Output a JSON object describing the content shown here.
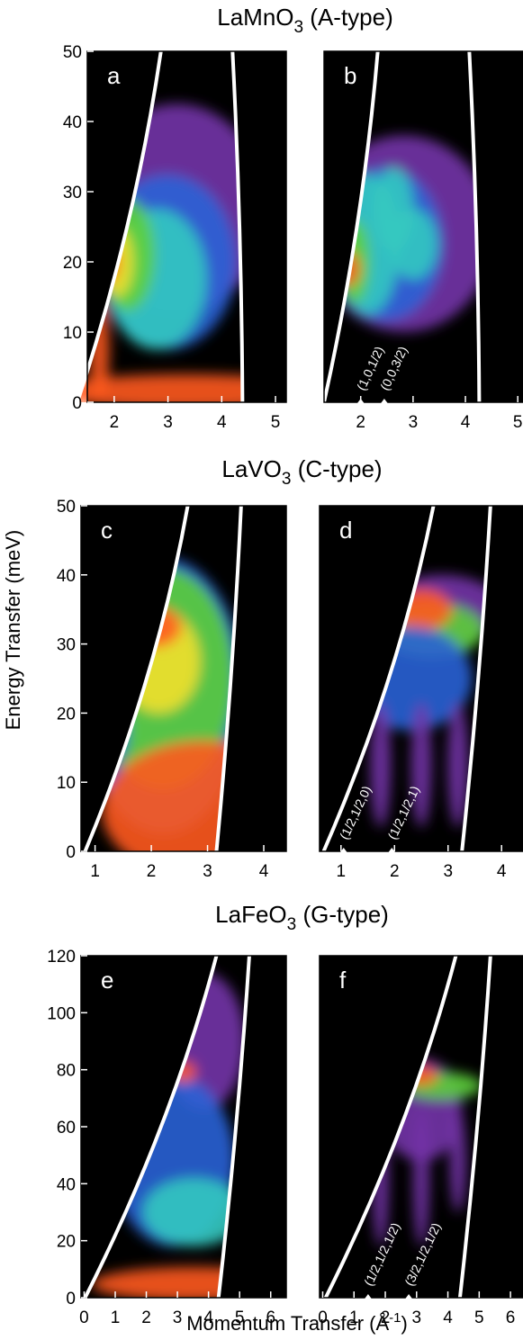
{
  "chart_data": [
    {
      "type": "heatmap",
      "title": {
        "main": "LaMnO",
        "sub": "3",
        "rest": " (A-type)"
      },
      "panel_label": "a",
      "xlim": [
        1.5,
        5.2
      ],
      "xticks": [
        2,
        3,
        4,
        5
      ],
      "ylim": [
        0,
        50
      ],
      "yticks": [
        0,
        10,
        20,
        30,
        40,
        50
      ]
    },
    {
      "type": "heatmap",
      "panel_label": "b",
      "xlim": [
        1.3,
        5.1
      ],
      "xticks": [
        2,
        3,
        4,
        5
      ],
      "ylim": [
        0,
        50
      ],
      "annotations": [
        {
          "label": "(1,0,1/2)",
          "x": 2.0
        },
        {
          "label": "(0,0,3/2)",
          "x": 2.45
        }
      ]
    },
    {
      "type": "heatmap",
      "title": {
        "main": "LaVO",
        "sub": "3",
        "rest": " (C-type)"
      },
      "panel_label": "c",
      "ylabel": "Energy Transfer (meV)",
      "xlim": [
        0.75,
        4.4
      ],
      "xticks": [
        1,
        2,
        3,
        4
      ],
      "ylim": [
        0,
        50
      ],
      "yticks": [
        0,
        10,
        20,
        30,
        40,
        50
      ]
    },
    {
      "type": "heatmap",
      "panel_label": "d",
      "xlim": [
        0.6,
        4.4
      ],
      "xticks": [
        1,
        2,
        3,
        4
      ],
      "ylim": [
        0,
        50
      ],
      "annotations": [
        {
          "label": "(1/2,1/2,0)",
          "x": 1.05
        },
        {
          "label": "(1/2,1/2,1)",
          "x": 1.95
        }
      ]
    },
    {
      "type": "heatmap",
      "title": {
        "main": "LaFeO",
        "sub": "3",
        "rest": " (G-type)"
      },
      "panel_label": "e",
      "xlabel": {
        "main": "Momentum Transfer (Å",
        "sup": "-1",
        "rest": ")"
      },
      "xlim": [
        -0.1,
        6.5
      ],
      "xticks": [
        0,
        1,
        2,
        3,
        4,
        5,
        6
      ],
      "ylim": [
        0,
        120
      ],
      "yticks": [
        0,
        20,
        40,
        60,
        80,
        100,
        120
      ]
    },
    {
      "type": "heatmap",
      "panel_label": "f",
      "xlim": [
        -0.1,
        6.4
      ],
      "xticks": [
        0,
        1,
        2,
        3,
        4,
        5,
        6
      ],
      "ylim": [
        0,
        120
      ],
      "annotations": [
        {
          "label": "(1/2,1/2,1/2)",
          "x": 1.45
        },
        {
          "label": "(3/2,1/2,1/2)",
          "x": 2.75
        }
      ]
    }
  ]
}
